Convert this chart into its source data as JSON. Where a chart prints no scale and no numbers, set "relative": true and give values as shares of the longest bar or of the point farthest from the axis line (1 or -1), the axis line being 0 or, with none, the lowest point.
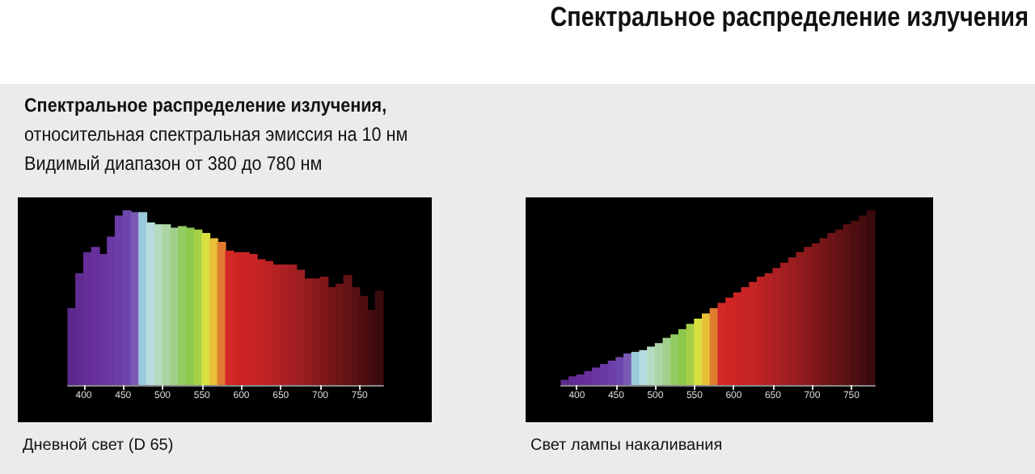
{
  "chart_data": [
    {
      "type": "bar",
      "subtitle": "Спектральное распределение излучения,\nотносительная спектральная эмиссия на 10 нм\nВидимый диапазон от 380 до 780 нм",
      "annotations": [
        "Дневной свет (D 65)"
      ],
      "relative": true,
      "xlim": [
        380,
        780
      ],
      "xticks": [
        400,
        450,
        500,
        550,
        600,
        650,
        700,
        750
      ],
      "x": [
        385,
        395,
        405,
        415,
        425,
        435,
        445,
        455,
        465,
        475,
        485,
        495,
        505,
        515,
        525,
        535,
        545,
        555,
        565,
        575,
        585,
        595,
        605,
        615,
        625,
        635,
        645,
        655,
        665,
        675,
        685,
        695,
        705,
        715,
        725,
        735,
        745,
        755,
        765,
        775
      ],
      "values": [
        0.44,
        0.64,
        0.76,
        0.79,
        0.75,
        0.85,
        0.97,
        1.0,
        0.99,
        0.99,
        0.93,
        0.92,
        0.92,
        0.9,
        0.91,
        0.9,
        0.89,
        0.87,
        0.84,
        0.82,
        0.77,
        0.76,
        0.76,
        0.75,
        0.72,
        0.71,
        0.69,
        0.69,
        0.69,
        0.66,
        0.61,
        0.61,
        0.62,
        0.56,
        0.58,
        0.63,
        0.56,
        0.51,
        0.43,
        0.54
      ],
      "colors": [
        "#5b2a8c",
        "#602c92",
        "#652e98",
        "#67309c",
        "#6a34a0",
        "#6a38a4",
        "#6b3ea8",
        "#6c46aa",
        "#7a5ab4",
        "#9cc8dc",
        "#b4dce0",
        "#b4dcc0",
        "#acd4a4",
        "#a0d08c",
        "#94cc64",
        "#8cc84c",
        "#a4d048",
        "#d8e040",
        "#e8c038",
        "#e07c30",
        "#d42828",
        "#d02424",
        "#cc2424",
        "#c82424",
        "#c42424",
        "#bc2224",
        "#b42224",
        "#ac2024",
        "#a41e22",
        "#9c1e20",
        "#941c1e",
        "#8a1a1c",
        "#80181a",
        "#761618",
        "#6c1416",
        "#621214",
        "#581012",
        "#4e0e10",
        "#440c0e",
        "#3a0a0c"
      ]
    },
    {
      "type": "bar",
      "title": "Спектральное распределение излучения",
      "annotations": [
        "Свет лампы накаливания"
      ],
      "relative": true,
      "xlim": [
        380,
        780
      ],
      "xticks": [
        400,
        450,
        500,
        550,
        600,
        650,
        700,
        750
      ],
      "x": [
        385,
        395,
        405,
        415,
        425,
        435,
        445,
        455,
        465,
        475,
        485,
        495,
        505,
        515,
        525,
        535,
        545,
        555,
        565,
        575,
        585,
        595,
        605,
        615,
        625,
        635,
        645,
        655,
        665,
        675,
        685,
        695,
        705,
        715,
        725,
        735,
        745,
        755,
        765,
        775
      ],
      "values": [
        0.03,
        0.05,
        0.06,
        0.08,
        0.1,
        0.12,
        0.14,
        0.16,
        0.18,
        0.19,
        0.2,
        0.22,
        0.24,
        0.27,
        0.29,
        0.32,
        0.35,
        0.38,
        0.41,
        0.44,
        0.47,
        0.5,
        0.53,
        0.56,
        0.59,
        0.62,
        0.64,
        0.67,
        0.7,
        0.73,
        0.76,
        0.79,
        0.81,
        0.84,
        0.87,
        0.89,
        0.92,
        0.94,
        0.97,
        1.0
      ],
      "colors": [
        "#5b2a8c",
        "#602c92",
        "#652e98",
        "#67309c",
        "#6a34a0",
        "#6a38a4",
        "#6b3ea8",
        "#6c46aa",
        "#7a5ab4",
        "#9cc8dc",
        "#b4dce0",
        "#b4dcc0",
        "#acd4a4",
        "#a0d08c",
        "#94cc64",
        "#8cc84c",
        "#a4d048",
        "#d8e040",
        "#e8c038",
        "#e07c30",
        "#d42828",
        "#d02424",
        "#cc2424",
        "#c82424",
        "#c42424",
        "#bc2224",
        "#b42224",
        "#ac2024",
        "#a41e22",
        "#9c1e20",
        "#941c1e",
        "#8a1a1c",
        "#80181a",
        "#761618",
        "#6c1416",
        "#621214",
        "#581012",
        "#4e0e10",
        "#440c0e",
        "#3a0a0c"
      ]
    }
  ]
}
